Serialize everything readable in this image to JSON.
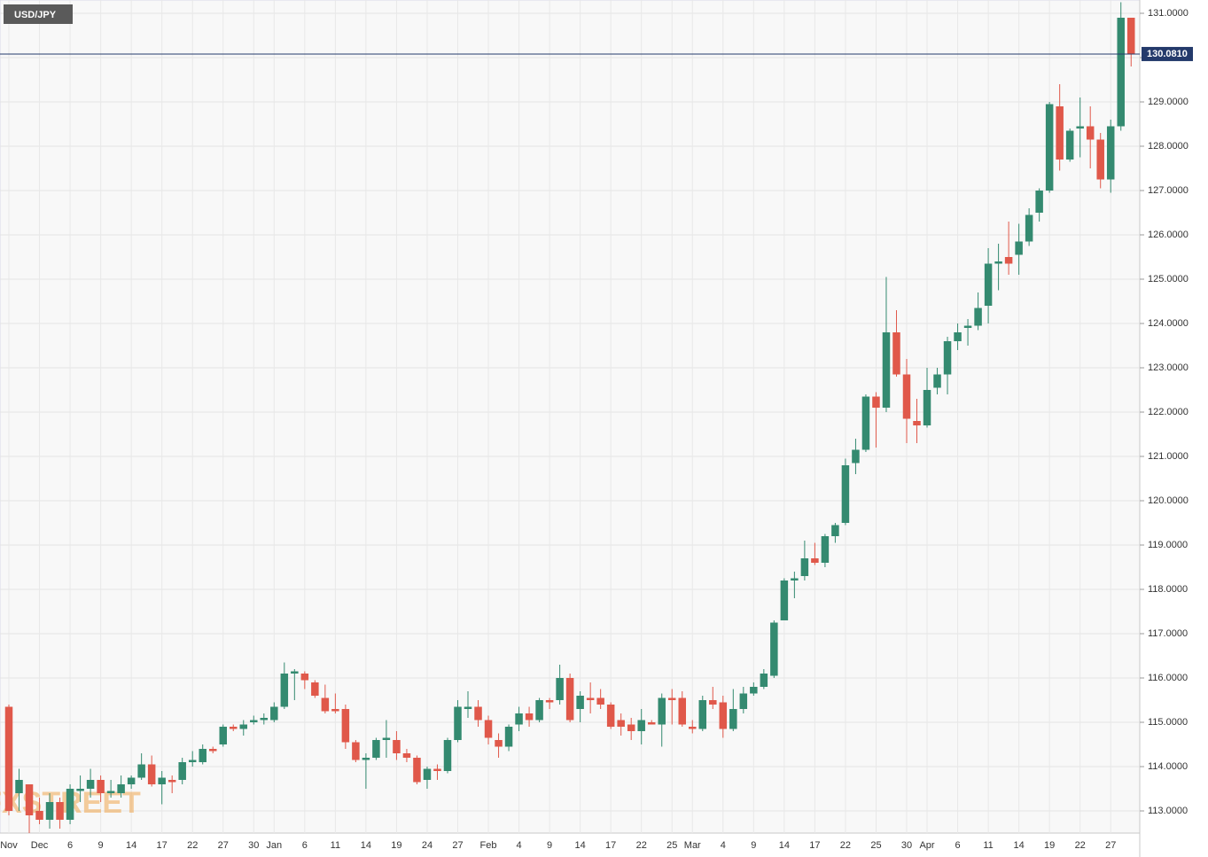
{
  "chart_data": {
    "type": "candlestick",
    "title": "USD/JPY",
    "watermark": "FXSTREET",
    "categories": [
      "Nov",
      null,
      null,
      "Dec",
      null,
      null,
      "6",
      null,
      null,
      "9",
      null,
      null,
      "14",
      null,
      null,
      "17",
      null,
      null,
      "22",
      null,
      null,
      "27",
      null,
      null,
      "30",
      null,
      "Jan",
      null,
      null,
      "6",
      null,
      null,
      "11",
      null,
      null,
      "14",
      null,
      null,
      "19",
      null,
      null,
      "24",
      null,
      null,
      "27",
      null,
      null,
      "Feb",
      null,
      null,
      "4",
      null,
      null,
      "9",
      null,
      null,
      "14",
      null,
      null,
      "17",
      null,
      null,
      "22",
      null,
      null,
      "25",
      null,
      "Mar",
      null,
      null,
      "4",
      null,
      null,
      "9",
      null,
      null,
      "14",
      null,
      null,
      "17",
      null,
      null,
      "22",
      null,
      null,
      "25",
      null,
      null,
      "30",
      null,
      "Apr",
      null,
      null,
      "6",
      null,
      null,
      "11",
      null,
      null,
      "14",
      null,
      null,
      "19",
      null,
      null,
      "22",
      null,
      null,
      "27",
      null,
      null
    ],
    "open": [
      115.35,
      113.4,
      113.6,
      113.0,
      112.8,
      113.2,
      112.8,
      113.45,
      113.5,
      113.7,
      113.4,
      113.4,
      113.6,
      113.75,
      114.05,
      113.6,
      113.7,
      113.7,
      114.1,
      114.1,
      114.4,
      114.5,
      114.9,
      114.85,
      115.0,
      115.05,
      115.05,
      115.35,
      116.1,
      116.1,
      115.9,
      115.55,
      115.3,
      115.3,
      114.55,
      114.15,
      114.2,
      114.6,
      114.6,
      114.3,
      114.2,
      113.7,
      113.95,
      113.9,
      114.6,
      115.3,
      115.35,
      115.05,
      114.6,
      114.45,
      114.95,
      115.2,
      115.05,
      115.5,
      115.5,
      116.0,
      115.3,
      115.55,
      115.55,
      115.4,
      115.05,
      114.95,
      114.8,
      115.0,
      114.95,
      115.55,
      115.55,
      114.9,
      114.85,
      115.5,
      115.45,
      114.85,
      115.3,
      115.65,
      115.8,
      116.05,
      117.3,
      118.2,
      118.3,
      118.7,
      118.6,
      119.2,
      119.5,
      120.85,
      121.15,
      122.35,
      122.1,
      123.8,
      122.85,
      121.8,
      121.7,
      122.55,
      122.85,
      123.6,
      123.9,
      123.95,
      124.4,
      125.35,
      125.5,
      125.55,
      125.85,
      126.5,
      127.0,
      128.9,
      127.7,
      128.4,
      128.45,
      128.15,
      127.25,
      128.45,
      130.9
    ],
    "high": [
      115.4,
      113.95,
      113.6,
      113.3,
      113.4,
      113.3,
      113.6,
      113.8,
      113.95,
      113.8,
      113.7,
      113.8,
      113.8,
      114.3,
      114.25,
      113.9,
      113.8,
      114.2,
      114.35,
      114.5,
      114.45,
      114.95,
      114.95,
      115.05,
      115.15,
      115.2,
      115.45,
      116.35,
      116.2,
      116.15,
      115.95,
      115.85,
      115.65,
      115.4,
      114.6,
      114.3,
      114.65,
      115.05,
      114.8,
      114.4,
      114.25,
      114.0,
      114.05,
      114.65,
      115.5,
      115.7,
      115.5,
      115.15,
      114.75,
      114.95,
      115.35,
      115.35,
      115.55,
      115.55,
      116.3,
      116.1,
      115.7,
      115.9,
      115.75,
      115.45,
      115.2,
      115.1,
      115.3,
      115.05,
      115.65,
      115.75,
      115.7,
      115.05,
      115.6,
      115.8,
      115.6,
      115.75,
      115.8,
      115.9,
      116.2,
      117.3,
      118.25,
      118.4,
      119.1,
      119.05,
      119.25,
      119.5,
      120.95,
      121.4,
      122.4,
      122.45,
      125.05,
      124.3,
      123.2,
      122.3,
      123.0,
      123.0,
      123.7,
      124.0,
      124.1,
      124.7,
      125.7,
      125.8,
      126.3,
      126.25,
      126.6,
      127.05,
      129.0,
      129.4,
      128.4,
      129.1,
      128.9,
      128.3,
      128.6,
      131.25,
      130.9
    ],
    "low": [
      112.9,
      113.0,
      112.5,
      112.7,
      112.6,
      112.6,
      112.7,
      113.2,
      113.3,
      113.2,
      113.3,
      113.3,
      113.5,
      113.7,
      113.55,
      113.15,
      113.4,
      113.6,
      114.0,
      114.05,
      114.3,
      114.45,
      114.8,
      114.7,
      114.95,
      114.95,
      115.0,
      115.3,
      115.5,
      115.75,
      115.55,
      115.2,
      115.2,
      114.4,
      114.1,
      113.5,
      114.15,
      114.2,
      114.15,
      114.1,
      113.6,
      113.5,
      113.7,
      113.85,
      114.55,
      115.1,
      114.9,
      114.5,
      114.2,
      114.35,
      114.8,
      114.9,
      115.0,
      115.3,
      115.4,
      115.0,
      115.0,
      115.2,
      115.3,
      114.85,
      114.7,
      114.6,
      114.5,
      114.95,
      114.45,
      114.95,
      114.9,
      114.75,
      114.8,
      115.3,
      114.65,
      114.8,
      115.2,
      115.6,
      115.75,
      116.0,
      117.3,
      117.8,
      118.2,
      118.55,
      118.5,
      119.05,
      119.45,
      120.6,
      121.1,
      121.2,
      122.0,
      122.8,
      121.3,
      121.3,
      121.65,
      122.4,
      122.4,
      123.4,
      123.5,
      123.85,
      124.0,
      124.75,
      125.1,
      125.1,
      125.75,
      126.3,
      126.95,
      127.45,
      127.65,
      127.75,
      127.5,
      127.05,
      126.95,
      128.35,
      129.8
    ],
    "close": [
      113.0,
      113.7,
      112.9,
      112.8,
      113.2,
      112.8,
      113.5,
      113.5,
      113.7,
      113.4,
      113.45,
      113.6,
      113.75,
      114.05,
      113.6,
      113.75,
      113.65,
      114.1,
      114.15,
      114.4,
      114.35,
      114.9,
      114.85,
      114.95,
      115.05,
      115.1,
      115.35,
      116.1,
      116.15,
      115.95,
      115.6,
      115.25,
      115.25,
      114.55,
      114.15,
      114.2,
      114.6,
      114.65,
      114.3,
      114.2,
      113.65,
      113.95,
      113.9,
      114.6,
      115.35,
      115.35,
      115.05,
      114.65,
      114.45,
      114.9,
      115.2,
      115.05,
      115.5,
      115.45,
      116.0,
      115.05,
      115.6,
      115.5,
      115.4,
      114.9,
      114.9,
      114.8,
      115.05,
      114.95,
      115.55,
      115.5,
      114.95,
      114.85,
      115.5,
      115.4,
      114.85,
      115.3,
      115.65,
      115.8,
      116.1,
      117.25,
      118.2,
      118.25,
      118.7,
      118.6,
      119.2,
      119.45,
      120.8,
      121.15,
      122.35,
      122.1,
      123.8,
      122.85,
      121.85,
      121.7,
      122.5,
      122.85,
      123.6,
      123.8,
      123.95,
      124.35,
      125.35,
      125.4,
      125.35,
      125.85,
      126.45,
      127.0,
      128.95,
      127.7,
      128.35,
      128.45,
      128.15,
      127.25,
      128.45,
      130.9,
      130.08
    ],
    "up_color": "#348a70",
    "down_color": "#e0584a",
    "ylim": [
      112.5,
      131.3
    ],
    "yticks": [
      {
        "value": 113,
        "label": "113.0000"
      },
      {
        "value": 114,
        "label": "114.0000"
      },
      {
        "value": 115,
        "label": "115.0000"
      },
      {
        "value": 116,
        "label": "116.0000"
      },
      {
        "value": 117,
        "label": "117.0000"
      },
      {
        "value": 118,
        "label": "118.0000"
      },
      {
        "value": 119,
        "label": "119.0000"
      },
      {
        "value": 120,
        "label": "120.0000"
      },
      {
        "value": 121,
        "label": "121.0000"
      },
      {
        "value": 122,
        "label": "122.0000"
      },
      {
        "value": 123,
        "label": "123.0000"
      },
      {
        "value": 124,
        "label": "124.0000"
      },
      {
        "value": 125,
        "label": "125.0000"
      },
      {
        "value": 126,
        "label": "126.0000"
      },
      {
        "value": 127,
        "label": "127.0000"
      },
      {
        "value": 128,
        "label": "128.0000"
      },
      {
        "value": 129,
        "label": "129.0000"
      },
      {
        "value": 130,
        "label": "130.0000"
      },
      {
        "value": 131,
        "label": "131.0000"
      }
    ],
    "price_line": {
      "value": 130.081,
      "label": "130.0810",
      "color": "#243a6b"
    },
    "grid": true
  }
}
